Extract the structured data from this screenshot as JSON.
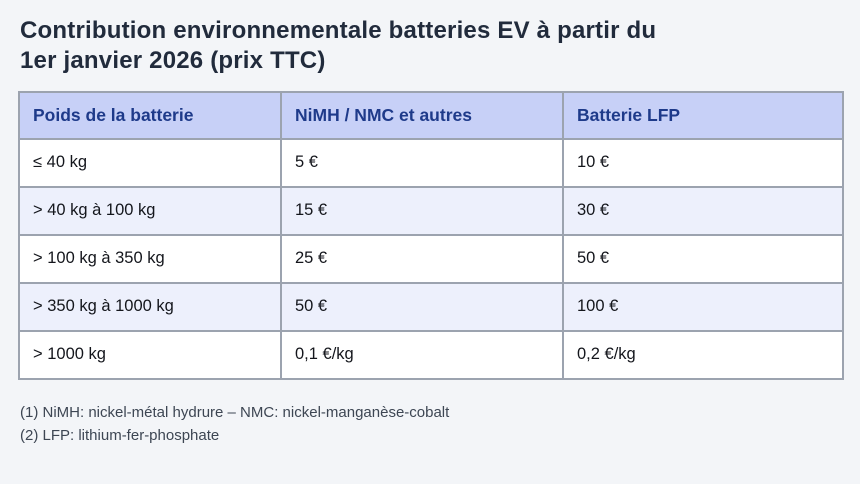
{
  "page": {
    "title_line1": "Contribution environnementale batteries EV à partir du",
    "title_line2": "1er janvier 2026 (prix TTC)"
  },
  "table": {
    "headers": [
      "Poids de la batterie",
      "NiMH / NMC et autres",
      "Batterie LFP"
    ],
    "rows": [
      [
        "≤ 40 kg",
        "5 €",
        "10 €"
      ],
      [
        "> 40 kg à 100 kg",
        "15 €",
        "30 €"
      ],
      [
        "> 100 kg à 350 kg",
        "25 €",
        "50 €"
      ],
      [
        "> 350 kg à 1000 kg",
        "50 €",
        "100 €"
      ],
      [
        "> 1000 kg",
        "0,1 €/kg",
        "0,2 €/kg"
      ]
    ]
  },
  "footnotes": [
    "(1) NiMH: nickel-métal hydrure – NMC: nickel-manganèse-cobalt",
    "(2) LFP: lithium-fer-phosphate"
  ],
  "colors": {
    "page_background": "#f3f5f8",
    "header_background": "#c7d0f7",
    "header_text": "#1e3a8a",
    "zebra_row_background": "#edf0fc",
    "table_border": "#9ca3af",
    "title_text": "#212b3c",
    "footnote_text": "#3d4653"
  }
}
